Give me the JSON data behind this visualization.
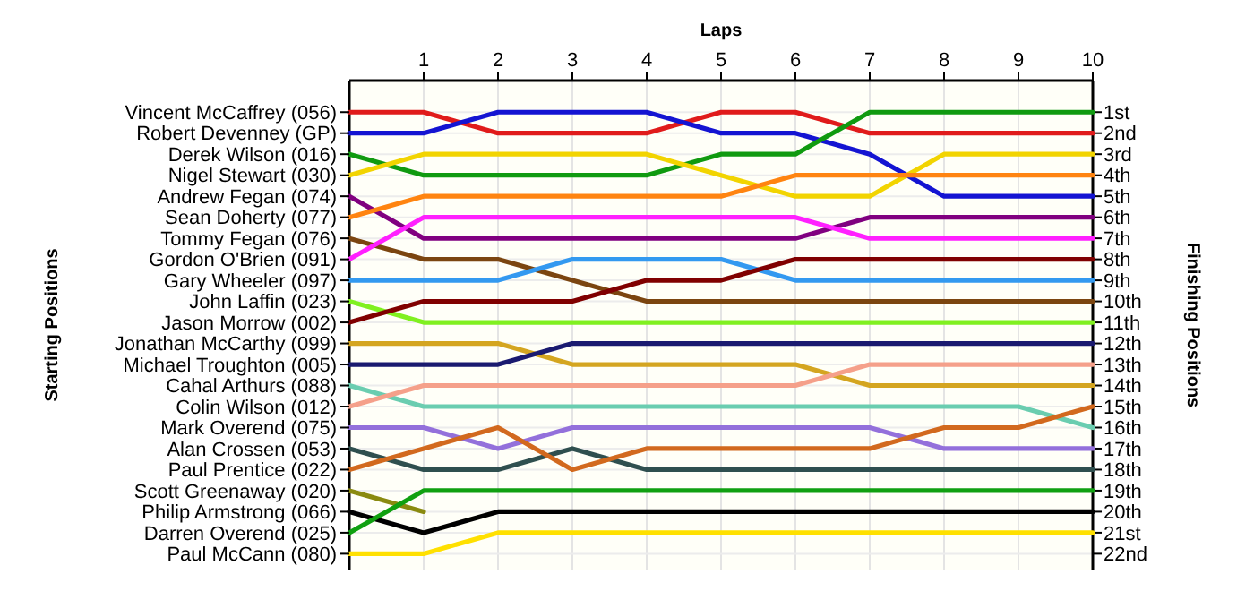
{
  "chart_data": {
    "type": "line",
    "xlabel": "Laps",
    "ylabel": "Finishing Positions",
    "x": [
      0,
      1,
      2,
      3,
      4,
      5,
      6,
      7,
      8,
      9,
      10
    ],
    "xlim": [
      0,
      10
    ],
    "xticks": [
      1,
      2,
      3,
      4,
      5,
      6,
      7,
      8,
      9,
      10
    ],
    "ylim": [
      22.75,
      -0.5
    ],
    "yticks": [
      {
        "value": 1,
        "label": "1st"
      },
      {
        "value": 2,
        "label": "2nd"
      },
      {
        "value": 3,
        "label": "3rd"
      },
      {
        "value": 4,
        "label": "4th"
      },
      {
        "value": 5,
        "label": "5th"
      },
      {
        "value": 6,
        "label": "6th"
      },
      {
        "value": 7,
        "label": "7th"
      },
      {
        "value": 8,
        "label": "8th"
      },
      {
        "value": 9,
        "label": "9th"
      },
      {
        "value": 10,
        "label": "10th"
      },
      {
        "value": 11,
        "label": "11th"
      },
      {
        "value": 12,
        "label": "12th"
      },
      {
        "value": 13,
        "label": "13th"
      },
      {
        "value": 14,
        "label": "14th"
      },
      {
        "value": 15,
        "label": "15th"
      },
      {
        "value": 16,
        "label": "16th"
      },
      {
        "value": 17,
        "label": "17th"
      },
      {
        "value": 18,
        "label": "18th"
      },
      {
        "value": 19,
        "label": "19th"
      },
      {
        "value": 20,
        "label": "20th"
      },
      {
        "value": 21,
        "label": "21st"
      },
      {
        "value": 22,
        "label": "22nd"
      }
    ],
    "grid": true,
    "line_style": "solid",
    "annotations": [
      "Starting Positions",
      "Vincent McCaffrey (056)",
      "Robert Devenney (GP)",
      "Derek Wilson (016)",
      "Nigel Stewart (030)",
      "Andrew Fegan (074)",
      "Sean Doherty (077)",
      "Tommy Fegan (076)",
      "Gordon O'Brien (091)",
      "Gary Wheeler (097)",
      "John Laffin (023)",
      "Jason Morrow (002)",
      "Jonathan McCarthy (099)",
      "Michael Troughton (005)",
      "Cahal Arthurs (088)",
      "Colin Wilson (012)",
      "Mark Overend (075)",
      "Alan Crossen (053)",
      "Paul Prentice (022)",
      "Scott Greenaway (020)",
      "Philip Armstrong (066)",
      "Darren Overend (025)",
      "Paul McCann (080)"
    ],
    "series": [
      {
        "color": "#e01b1b",
        "values": [
          1,
          1,
          2,
          2,
          2,
          1,
          1,
          2,
          2,
          2,
          2
        ]
      },
      {
        "color": "#1414d2",
        "values": [
          2,
          2,
          1,
          1,
          1,
          2,
          2,
          3,
          5,
          5,
          5
        ]
      },
      {
        "color": "#109a10",
        "values": [
          3,
          4,
          4,
          4,
          4,
          3,
          3,
          1,
          1,
          1,
          1
        ]
      },
      {
        "color": "#f2d400",
        "values": [
          4,
          3,
          3,
          3,
          3,
          4,
          5,
          5,
          3,
          3,
          3
        ]
      },
      {
        "color": "#800080",
        "values": [
          5,
          7,
          7,
          7,
          7,
          7,
          7,
          6,
          6,
          6,
          6
        ]
      },
      {
        "color": "#ff8410",
        "values": [
          6,
          5,
          5,
          5,
          5,
          5,
          4,
          4,
          4,
          4,
          4
        ]
      },
      {
        "color": "#7b4510",
        "values": [
          7,
          8,
          8,
          9,
          10,
          10,
          10,
          10,
          10,
          10,
          10
        ]
      },
      {
        "color": "#ff20ff",
        "values": [
          8,
          6,
          6,
          6,
          6,
          6,
          6,
          7,
          7,
          7,
          7
        ]
      },
      {
        "color": "#3399f0",
        "values": [
          9,
          9,
          9,
          8,
          8,
          8,
          9,
          9,
          9,
          9,
          9
        ]
      },
      {
        "color": "#80f020",
        "values": [
          10,
          11,
          11,
          11,
          11,
          11,
          11,
          11,
          11,
          11,
          11
        ]
      },
      {
        "color": "#800000",
        "values": [
          11,
          10,
          10,
          10,
          9,
          9,
          8,
          8,
          8,
          8,
          8
        ]
      },
      {
        "color": "#d4a520",
        "values": [
          12,
          12,
          12,
          13,
          13,
          13,
          13,
          14,
          14,
          14,
          14
        ]
      },
      {
        "color": "#1a1a70",
        "values": [
          13,
          13,
          13,
          12,
          12,
          12,
          12,
          12,
          12,
          12,
          12
        ]
      },
      {
        "color": "#6acdb0",
        "values": [
          14,
          15,
          15,
          15,
          15,
          15,
          15,
          15,
          15,
          15,
          16
        ]
      },
      {
        "color": "#f5a08a",
        "values": [
          15,
          14,
          14,
          14,
          14,
          14,
          14,
          13,
          13,
          13,
          13
        ]
      },
      {
        "color": "#9370db",
        "values": [
          16,
          16,
          17,
          16,
          16,
          16,
          16,
          16,
          17,
          17,
          17
        ]
      },
      {
        "color": "#2f4f4f",
        "values": [
          17,
          18,
          18,
          17,
          18,
          18,
          18,
          18,
          18,
          18,
          18
        ]
      },
      {
        "color": "#d2691e",
        "values": [
          18,
          17,
          16,
          18,
          17,
          17,
          17,
          17,
          16,
          16,
          15
        ]
      },
      {
        "color": "#8a8a10",
        "values": [
          19,
          20,
          null,
          null,
          null,
          null,
          null,
          null,
          null,
          null,
          null
        ]
      },
      {
        "color": "#000000",
        "values": [
          20,
          21,
          20,
          20,
          20,
          20,
          20,
          20,
          20,
          20,
          20
        ]
      },
      {
        "color": "#10a010",
        "values": [
          21,
          19,
          19,
          19,
          19,
          19,
          19,
          19,
          19,
          19,
          19
        ]
      },
      {
        "color": "#ffe000",
        "values": [
          22,
          22,
          21,
          21,
          21,
          21,
          21,
          21,
          21,
          21,
          21
        ]
      }
    ]
  }
}
